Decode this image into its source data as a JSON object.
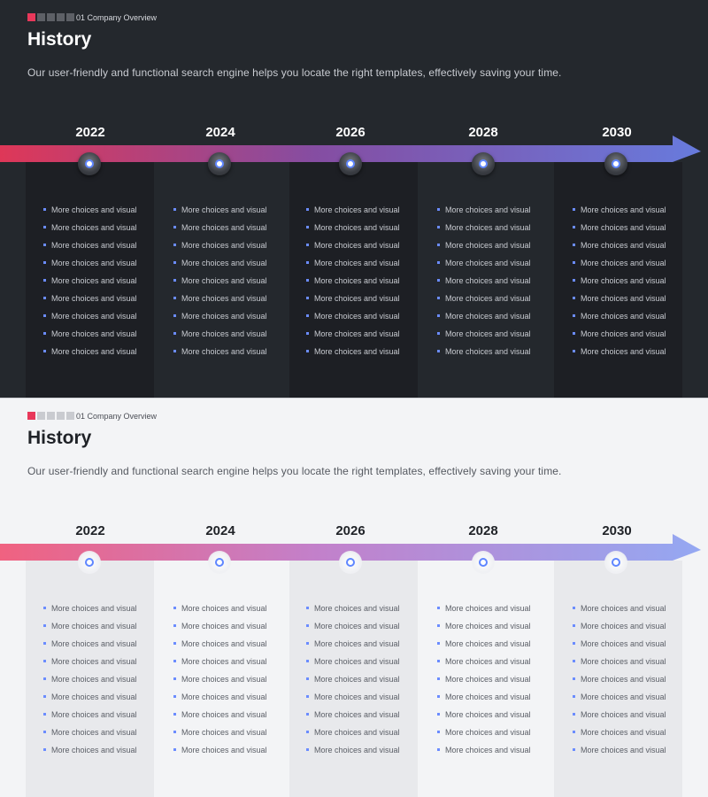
{
  "slides": [
    {
      "theme": "dark",
      "section_label": "01 Company Overview",
      "title": "History",
      "subtitle": "Our user-friendly and functional search engine helps you locate the right templates, effectively  saving your time.",
      "years": [
        "2022",
        "2024",
        "2026",
        "2028",
        "2030"
      ],
      "item_text": "More choices and visual"
    },
    {
      "theme": "light",
      "section_label": "01 Company Overview",
      "title": "History",
      "subtitle": "Our user-friendly and functional search engine helps you locate the right templates, effectively  saving your time.",
      "years": [
        "2022",
        "2024",
        "2026",
        "2028",
        "2030"
      ],
      "item_text": "More choices and visual"
    }
  ],
  "colors": {
    "accent_pink": "#e8385a",
    "accent_blue": "#6b8cff",
    "dark_bg": "#24282d",
    "light_bg": "#f3f4f6"
  }
}
